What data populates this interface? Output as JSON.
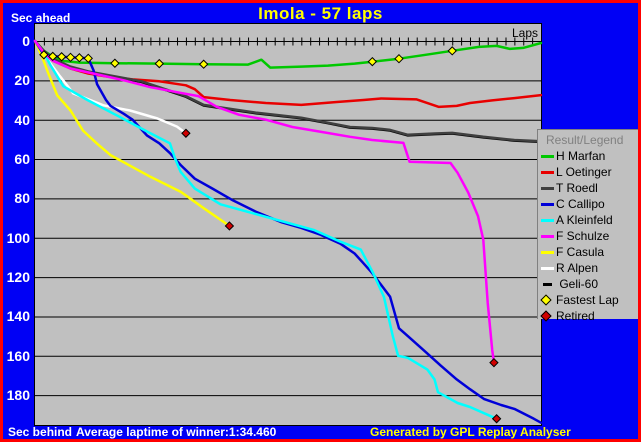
{
  "window": {
    "title": "Imola - 57 laps"
  },
  "labels": {
    "sec_ahead": "Sec ahead",
    "sec_behind": "Sec behind",
    "laps": "Laps",
    "avg_laptime": "Average laptime of winner:1:34.460",
    "generated_by": "Generated by GPL Replay Analyser"
  },
  "colors": {
    "window_background": "#0000f5",
    "window_border": "#ff0000",
    "plot_background": "#c0c0c0",
    "gridline": "#000000",
    "title_text": "#ffff00",
    "axis_text": "#ffffff",
    "legend_background": "#c0c0c0",
    "legend_header_text": "#808080",
    "fastest_lap_marker": "#ffff00",
    "retired_marker": "#d00000"
  },
  "legend": {
    "header": "Result/Legend",
    "items": [
      {
        "label": "H Marfan",
        "color": "#00c800",
        "type": "line"
      },
      {
        "label": "L Oetinger",
        "color": "#e80000",
        "type": "line"
      },
      {
        "label": "T Roedl",
        "color": "#404040",
        "type": "line"
      },
      {
        "label": "C Callipo",
        "color": "#0000d8",
        "type": "line"
      },
      {
        "label": "A Kleinfeld",
        "color": "#00ffff",
        "type": "line"
      },
      {
        "label": "F Schulze",
        "color": "#ff00ff",
        "type": "line"
      },
      {
        "label": "F Casula",
        "color": "#ffff00",
        "type": "line"
      },
      {
        "label": "R Alpen",
        "color": "#ffffff",
        "type": "line"
      },
      {
        "label": " Geli-60",
        "color": "#000000",
        "type": "line",
        "short_swatch": true
      },
      {
        "label": "Fastest Lap",
        "color": "#ffff00",
        "type": "diamond"
      },
      {
        "label": "Retired",
        "color": "#d00000",
        "type": "diamond"
      }
    ]
  },
  "chart_data": {
    "type": "line",
    "title": "Imola - 57 laps",
    "xlabel": "Laps",
    "ylabel_top": "Sec ahead",
    "ylabel_bottom": "Sec behind",
    "x_min": 0,
    "x_max": 57,
    "x_tick_step": 1,
    "y_ticks": [
      0,
      20,
      40,
      60,
      80,
      100,
      120,
      140,
      160,
      180
    ],
    "y_min": -8.6,
    "y_max": 195,
    "y_inverted": true,
    "grid": "horizontal",
    "legend_position": "right",
    "series": [
      {
        "name": "H Marfan",
        "color": "#00c800",
        "result": "winner",
        "points": [
          [
            0,
            0
          ],
          [
            1,
            5
          ],
          [
            2,
            8
          ],
          [
            3,
            10
          ],
          [
            5,
            11
          ],
          [
            9,
            11.3
          ],
          [
            14,
            11.5
          ],
          [
            19,
            11.8
          ],
          [
            24,
            12
          ],
          [
            25.5,
            9.5
          ],
          [
            26.5,
            13.5
          ],
          [
            30,
            13
          ],
          [
            33,
            12.5
          ],
          [
            36,
            11.5
          ],
          [
            38,
            10.5
          ],
          [
            41,
            9
          ],
          [
            44,
            7
          ],
          [
            47,
            5
          ],
          [
            50,
            3
          ],
          [
            52,
            2.5
          ],
          [
            53.5,
            4
          ],
          [
            55,
            3.5
          ],
          [
            57,
            1
          ]
        ],
        "fastest_laps": [
          [
            9,
            11.3
          ],
          [
            14,
            11.5
          ],
          [
            19,
            11.8
          ],
          [
            38,
            10.5
          ],
          [
            41,
            9
          ],
          [
            47,
            5
          ]
        ],
        "retired_at": null
      },
      {
        "name": "L Oetinger",
        "color": "#e80000",
        "result": "finished",
        "points": [
          [
            0,
            0
          ],
          [
            1,
            6
          ],
          [
            2,
            10
          ],
          [
            4,
            14
          ],
          [
            6,
            16.5
          ],
          [
            8,
            18
          ],
          [
            11,
            19.5
          ],
          [
            14,
            20.5
          ],
          [
            17,
            22.5
          ],
          [
            18,
            24.5
          ],
          [
            19,
            28.5
          ],
          [
            22,
            30
          ],
          [
            26,
            31.5
          ],
          [
            30,
            32.5
          ],
          [
            34,
            31
          ],
          [
            37,
            30
          ],
          [
            39,
            29.2
          ],
          [
            43,
            29.7
          ],
          [
            45.5,
            33.5
          ],
          [
            47.5,
            33
          ],
          [
            49,
            31.5
          ],
          [
            51.5,
            30.2
          ],
          [
            54,
            29
          ],
          [
            57,
            27.5
          ]
        ],
        "fastest_laps": [],
        "retired_at": null
      },
      {
        "name": "T Roedl",
        "color": "#404040",
        "result": "finished",
        "points": [
          [
            0,
            0
          ],
          [
            1,
            5
          ],
          [
            2,
            9
          ],
          [
            4,
            13
          ],
          [
            6,
            15.5
          ],
          [
            9,
            18
          ],
          [
            12,
            20.5
          ],
          [
            15,
            25
          ],
          [
            17,
            28
          ],
          [
            19,
            32.5
          ],
          [
            22,
            34.5
          ],
          [
            25,
            36.5
          ],
          [
            30,
            39
          ],
          [
            33,
            41.5
          ],
          [
            35.5,
            43.7
          ],
          [
            38,
            44.2
          ],
          [
            40,
            45.2
          ],
          [
            42,
            47.7
          ],
          [
            45,
            47
          ],
          [
            47,
            46.7
          ],
          [
            50.5,
            48.7
          ],
          [
            54,
            50.3
          ],
          [
            57,
            51
          ]
        ],
        "fastest_laps": [],
        "retired_at": null
      },
      {
        "name": "C Callipo",
        "color": "#0000d8",
        "result": "finished",
        "points": [
          [
            0,
            0
          ],
          [
            1,
            7
          ],
          [
            2,
            7.8
          ],
          [
            3,
            8
          ],
          [
            4,
            8.3
          ],
          [
            5,
            8.5
          ],
          [
            6,
            8.8
          ],
          [
            6.6,
            15
          ],
          [
            7,
            22
          ],
          [
            8,
            30
          ],
          [
            8.5,
            33
          ],
          [
            10,
            37
          ],
          [
            11,
            40
          ],
          [
            12.6,
            48
          ],
          [
            14,
            52
          ],
          [
            15.2,
            57
          ],
          [
            16.4,
            63
          ],
          [
            18,
            70
          ],
          [
            20,
            75
          ],
          [
            22.3,
            81
          ],
          [
            25,
            87
          ],
          [
            27.7,
            92
          ],
          [
            30,
            95
          ],
          [
            32.2,
            98.5
          ],
          [
            34.4,
            103
          ],
          [
            36,
            108
          ],
          [
            37,
            113
          ],
          [
            38,
            118
          ],
          [
            40,
            130
          ],
          [
            41,
            146
          ],
          [
            42,
            150
          ],
          [
            44,
            158
          ],
          [
            45.7,
            165
          ],
          [
            47.5,
            172
          ],
          [
            49,
            177
          ],
          [
            50.6,
            182
          ],
          [
            52.5,
            185
          ],
          [
            54,
            187
          ],
          [
            56.2,
            192
          ],
          [
            57,
            194
          ]
        ],
        "fastest_laps": [
          [
            1,
            7
          ],
          [
            2,
            7.8
          ],
          [
            3,
            8
          ],
          [
            4,
            8.3
          ],
          [
            5,
            8.5
          ],
          [
            6,
            8.8
          ]
        ],
        "retired_at": null
      },
      {
        "name": "A Kleinfeld",
        "color": "#00ffff",
        "result": "retired",
        "points": [
          [
            0,
            0
          ],
          [
            1,
            6
          ],
          [
            1.7,
            12
          ],
          [
            3.2,
            23
          ],
          [
            5.9,
            30
          ],
          [
            9.3,
            38
          ],
          [
            12.4,
            45.5
          ],
          [
            15.2,
            52
          ],
          [
            15.8,
            60
          ],
          [
            16.4,
            66.5
          ],
          [
            18,
            75
          ],
          [
            20.9,
            83
          ],
          [
            25.7,
            89
          ],
          [
            31.4,
            96
          ],
          [
            34.4,
            102
          ],
          [
            36.7,
            106
          ],
          [
            38.1,
            118
          ],
          [
            39.3,
            130
          ],
          [
            40.3,
            150
          ],
          [
            40.9,
            160
          ],
          [
            42,
            161
          ],
          [
            44.2,
            167
          ],
          [
            45,
            172
          ],
          [
            45.4,
            178.5
          ],
          [
            47.6,
            184
          ],
          [
            49,
            186
          ],
          [
            51,
            190
          ],
          [
            52,
            192
          ]
        ],
        "fastest_laps": [],
        "retired_at": [
          52,
          192
        ]
      },
      {
        "name": "F Schulze",
        "color": "#ff00ff",
        "result": "retired",
        "points": [
          [
            0,
            0
          ],
          [
            1,
            6
          ],
          [
            2,
            10
          ],
          [
            4,
            14
          ],
          [
            7,
            17
          ],
          [
            10,
            20
          ],
          [
            13,
            23.5
          ],
          [
            16,
            26
          ],
          [
            18.4,
            28
          ],
          [
            20.5,
            33.5
          ],
          [
            23,
            37.5
          ],
          [
            26,
            40
          ],
          [
            29,
            43.7
          ],
          [
            32,
            46
          ],
          [
            35.5,
            48.7
          ],
          [
            38,
            50.3
          ],
          [
            41.5,
            51.8
          ],
          [
            42.2,
            61.4
          ],
          [
            46.8,
            62
          ],
          [
            47.6,
            67
          ],
          [
            48.8,
            77
          ],
          [
            49.9,
            89
          ],
          [
            50.5,
            101
          ],
          [
            51,
            133
          ],
          [
            51.5,
            157
          ],
          [
            51.7,
            163.5
          ]
        ],
        "fastest_laps": [],
        "retired_at": [
          51.7,
          163.5
        ]
      },
      {
        "name": "F Casula",
        "color": "#ffff00",
        "result": "retired",
        "points": [
          [
            0,
            0
          ],
          [
            0.8,
            8
          ],
          [
            1.5,
            16.4
          ],
          [
            2.5,
            27.6
          ],
          [
            4,
            35.3
          ],
          [
            5.4,
            45.5
          ],
          [
            7,
            52.2
          ],
          [
            8.5,
            58
          ],
          [
            9.9,
            61.4
          ],
          [
            13,
            69
          ],
          [
            16.4,
            76.6
          ],
          [
            19,
            85
          ],
          [
            21.9,
            94
          ]
        ],
        "fastest_laps": [],
        "retired_at": [
          21.9,
          94
        ]
      },
      {
        "name": "R Alpen",
        "color": "#ffffff",
        "result": "retired",
        "points": [
          [
            0,
            0
          ],
          [
            1,
            7
          ],
          [
            2,
            13
          ],
          [
            2.8,
            17.9
          ],
          [
            4.3,
            26.6
          ],
          [
            7.7,
            32.7
          ],
          [
            10.7,
            35.3
          ],
          [
            13.8,
            39.4
          ],
          [
            16,
            43.5
          ],
          [
            17,
            46.9
          ]
        ],
        "fastest_laps": [],
        "retired_at": [
          17,
          46.9
        ]
      },
      {
        "name": "Geli-60",
        "color": "#000000",
        "result": "finished",
        "points": [
          [
            0,
            0
          ],
          [
            1,
            5.3
          ],
          [
            2,
            9.3
          ],
          [
            4,
            13.3
          ],
          [
            6,
            15.8
          ],
          [
            9,
            18.3
          ],
          [
            12,
            20.8
          ],
          [
            15,
            25.3
          ],
          [
            17,
            28.3
          ],
          [
            19,
            32.8
          ],
          [
            22,
            34.8
          ],
          [
            25,
            36.8
          ],
          [
            30,
            39.3
          ],
          [
            33,
            41.8
          ],
          [
            35.5,
            44
          ],
          [
            38,
            44.5
          ],
          [
            40,
            45.5
          ],
          [
            42,
            48
          ],
          [
            45,
            47.3
          ],
          [
            47,
            47
          ],
          [
            50.5,
            49
          ],
          [
            54,
            50.6
          ],
          [
            57,
            51.3
          ]
        ],
        "fastest_laps": [],
        "retired_at": null
      }
    ]
  }
}
